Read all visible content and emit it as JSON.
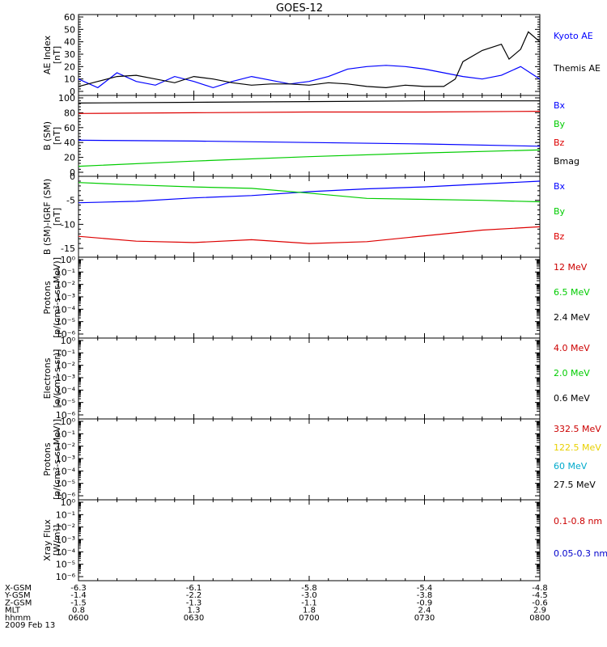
{
  "title": "GOES-12",
  "chart_data": [
    {
      "type": "line",
      "ylabel": "AE Index\n[nT]",
      "ylim": [
        0,
        60
      ],
      "yticks": [
        "0",
        "10",
        "20",
        "30",
        "40",
        "50",
        "60"
      ],
      "ytick_values": [
        0,
        10,
        20,
        30,
        40,
        50,
        60
      ],
      "series": [
        {
          "name": "Kyoto AE",
          "color": "#0000ff",
          "x": [
            0,
            5,
            10,
            15,
            20,
            25,
            30,
            35,
            40,
            45,
            50,
            55,
            60,
            65,
            70,
            75,
            80,
            85,
            90,
            95,
            100,
            105,
            110,
            115,
            120
          ],
          "values": [
            10,
            3,
            15,
            8,
            5,
            12,
            8,
            3,
            8,
            12,
            9,
            6,
            8,
            12,
            18,
            20,
            21,
            20,
            18,
            15,
            12,
            10,
            13,
            20,
            10
          ]
        },
        {
          "name": "Themis AE",
          "color": "#000000",
          "x": [
            0,
            5,
            10,
            15,
            20,
            25,
            30,
            35,
            40,
            45,
            50,
            55,
            60,
            65,
            70,
            75,
            80,
            85,
            90,
            95,
            98,
            100,
            105,
            110,
            112,
            115,
            117,
            120
          ],
          "values": [
            4,
            8,
            12,
            13,
            10,
            7,
            12,
            10,
            7,
            5,
            6,
            6,
            5,
            7,
            6,
            4,
            3,
            5,
            4,
            4,
            10,
            24,
            33,
            38,
            26,
            34,
            48,
            40
          ]
        }
      ]
    },
    {
      "type": "line",
      "ylabel": "B (SM)\n[nT]",
      "ylim": [
        0,
        100
      ],
      "yticks": [
        "0",
        "20",
        "40",
        "60",
        "80",
        "100"
      ],
      "ytick_values": [
        0,
        20,
        40,
        60,
        80,
        100
      ],
      "series": [
        {
          "name": "Bx",
          "color": "#0000ff",
          "x": [
            0,
            30,
            60,
            90,
            120
          ],
          "values": [
            43,
            42,
            40,
            38,
            35
          ]
        },
        {
          "name": "By",
          "color": "#00cc00",
          "x": [
            0,
            30,
            60,
            90,
            120
          ],
          "values": [
            8,
            15,
            21,
            26,
            30
          ]
        },
        {
          "name": "Bz",
          "color": "#dd0000",
          "x": [
            0,
            30,
            60,
            90,
            120
          ],
          "values": [
            79,
            80,
            81,
            81,
            82
          ]
        },
        {
          "name": "Bmag",
          "color": "#000000",
          "x": [
            0,
            30,
            60,
            90,
            120
          ],
          "values": [
            93,
            94,
            95,
            96,
            96
          ]
        }
      ]
    },
    {
      "type": "line",
      "ylabel": "B (SM)-IGRF (SM)\n[nT]",
      "ylim": [
        -16,
        -0.5
      ],
      "yticks": [
        "-15",
        "-10",
        "-5",
        "0"
      ],
      "ytick_values": [
        -15,
        -10,
        -5,
        0
      ],
      "series": [
        {
          "name": "Bx",
          "color": "#0000ff",
          "x": [
            0,
            15,
            30,
            45,
            60,
            75,
            90,
            105,
            120
          ],
          "values": [
            -5.5,
            -5.2,
            -4.5,
            -4.0,
            -3.2,
            -2.6,
            -2.2,
            -1.6,
            -1.0
          ]
        },
        {
          "name": "By",
          "color": "#00cc00",
          "x": [
            0,
            15,
            30,
            45,
            60,
            75,
            90,
            105,
            120
          ],
          "values": [
            -1.3,
            -1.8,
            -2.2,
            -2.5,
            -3.5,
            -4.6,
            -4.8,
            -5.0,
            -5.3
          ]
        },
        {
          "name": "Bz",
          "color": "#dd0000",
          "x": [
            0,
            15,
            30,
            45,
            60,
            75,
            90,
            105,
            120
          ],
          "values": [
            -12.5,
            -13.5,
            -13.8,
            -13.2,
            -14.0,
            -13.6,
            -12.4,
            -11.2,
            -10.5
          ]
        }
      ]
    },
    {
      "type": "line",
      "ylabel": "Protons\n[p/(cm²-s-sr-MeV)]",
      "yscale": "log",
      "ylim": [
        1e-06,
        1
      ],
      "yticks": [
        "10⁰",
        "10⁻¹",
        "10⁻²",
        "10⁻³",
        "10⁻⁴",
        "10⁻⁵",
        "10⁻⁶"
      ],
      "ytick_values": [
        0,
        -1,
        -2,
        -3,
        -4,
        -5,
        -6
      ],
      "series": [
        {
          "name": "12 MeV",
          "color": "#cc0000",
          "values": []
        },
        {
          "name": "6.5 MeV",
          "color": "#00cc00",
          "values": []
        },
        {
          "name": "2.4 MeV",
          "color": "#000000",
          "values": []
        }
      ]
    },
    {
      "type": "line",
      "ylabel": "Electrons\n[e/(cm²-s-sr)]",
      "yscale": "log",
      "ylim": [
        1e-06,
        1
      ],
      "yticks": [
        "10⁰",
        "10⁻¹",
        "10⁻²",
        "10⁻³",
        "10⁻⁴",
        "10⁻⁵",
        "10⁻⁶"
      ],
      "ytick_values": [
        0,
        -1,
        -2,
        -3,
        -4,
        -5,
        -6
      ],
      "series": [
        {
          "name": "4.0 MeV",
          "color": "#cc0000",
          "values": []
        },
        {
          "name": "2.0 MeV",
          "color": "#00cc00",
          "values": []
        },
        {
          "name": "0.6 MeV",
          "color": "#000000",
          "values": []
        }
      ]
    },
    {
      "type": "line",
      "ylabel": "Protons\n[p/(cm²-s-sr-MeV)]",
      "yscale": "log",
      "ylim": [
        1e-06,
        1
      ],
      "yticks": [
        "10⁰",
        "10⁻¹",
        "10⁻²",
        "10⁻³",
        "10⁻⁴",
        "10⁻⁵",
        "10⁻⁶"
      ],
      "ytick_values": [
        0,
        -1,
        -2,
        -3,
        -4,
        -5,
        -6
      ],
      "series": [
        {
          "name": "332.5 MeV",
          "color": "#cc0000",
          "values": []
        },
        {
          "name": "122.5 MeV",
          "color": "#e8d000",
          "values": []
        },
        {
          "name": "60 MeV",
          "color": "#00aacc",
          "values": []
        },
        {
          "name": "27.5 MeV",
          "color": "#000000",
          "values": []
        }
      ]
    },
    {
      "type": "line",
      "ylabel": "Xray Flux\n[W/m²]",
      "yscale": "log",
      "ylim": [
        1e-06,
        1
      ],
      "yticks": [
        "10⁰",
        "10⁻¹",
        "10⁻²",
        "10⁻³",
        "10⁻⁴",
        "10⁻⁵",
        "10⁻⁶"
      ],
      "ytick_values": [
        0,
        -1,
        -2,
        -3,
        -4,
        -5,
        -6
      ],
      "series": [
        {
          "name": "0.1-0.8 nm",
          "color": "#cc0000",
          "values": []
        },
        {
          "name": "0.05-0.3 nm",
          "color": "#0000cc",
          "values": []
        }
      ]
    }
  ],
  "x_axis": {
    "row_labels": [
      "X-GSM",
      "Y-GSM",
      "Z-GSM",
      "MLT",
      "hhmm"
    ],
    "date": "2009 Feb 13",
    "ticks": [
      {
        "minute": 0,
        "values": [
          "-6.3",
          "-1.4",
          "-1.5",
          "0.8",
          "0600"
        ]
      },
      {
        "minute": 30,
        "values": [
          "-6.1",
          "-2.2",
          "-1.3",
          "1.3",
          "0630"
        ]
      },
      {
        "minute": 60,
        "values": [
          "-5.8",
          "-3.0",
          "-1.1",
          "1.8",
          "0700"
        ]
      },
      {
        "minute": 90,
        "values": [
          "-5.4",
          "-3.8",
          "-0.9",
          "2.4",
          "0730"
        ]
      },
      {
        "minute": 120,
        "values": [
          "-4.8",
          "-4.5",
          "-0.6",
          "2.9",
          "0800"
        ]
      }
    ]
  }
}
